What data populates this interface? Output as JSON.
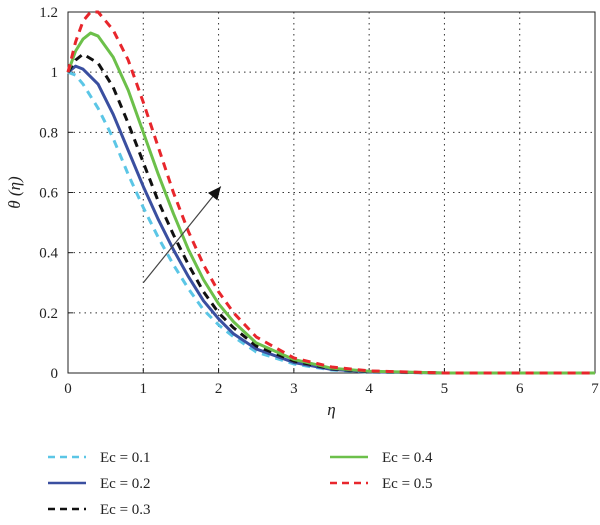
{
  "chart_data": {
    "type": "line",
    "title": "",
    "xlabel": "η",
    "ylabel": "θ (η)",
    "xlim": [
      0,
      7
    ],
    "ylim": [
      0,
      1.2
    ],
    "xticks": [
      "0",
      "1",
      "2",
      "3",
      "4",
      "5",
      "6",
      "7"
    ],
    "yticks": [
      "0",
      "0.2",
      "0.4",
      "0.6",
      "0.8",
      "1",
      "1.2"
    ],
    "grid": true,
    "legend_position": "bottom",
    "annotation": "arrow indicating increasing Ec",
    "series": [
      {
        "name": "Ec = 0.1",
        "color": "#5bc6e6",
        "dash": "dashed",
        "x": [
          0,
          0.1,
          0.2,
          0.4,
          0.6,
          0.8,
          1.0,
          1.2,
          1.4,
          1.6,
          1.8,
          2.0,
          2.2,
          2.5,
          3.0,
          3.5,
          4.0,
          5.0,
          6.0,
          7.0
        ],
        "y": [
          1.0,
          0.99,
          0.96,
          0.88,
          0.78,
          0.66,
          0.55,
          0.45,
          0.36,
          0.28,
          0.21,
          0.16,
          0.12,
          0.07,
          0.03,
          0.01,
          0.003,
          0.0,
          0.0,
          0.0
        ]
      },
      {
        "name": "Ec = 0.2",
        "color": "#3a4fa0",
        "dash": "solid",
        "x": [
          0,
          0.1,
          0.2,
          0.4,
          0.6,
          0.8,
          1.0,
          1.2,
          1.4,
          1.6,
          1.8,
          2.0,
          2.2,
          2.5,
          3.0,
          3.5,
          4.0,
          5.0,
          6.0,
          7.0
        ],
        "y": [
          1.0,
          1.02,
          1.01,
          0.96,
          0.86,
          0.74,
          0.62,
          0.51,
          0.41,
          0.32,
          0.24,
          0.18,
          0.13,
          0.08,
          0.035,
          0.012,
          0.004,
          0.0,
          0.0,
          0.0
        ]
      },
      {
        "name": "Ec = 0.3",
        "color": "#111111",
        "dash": "dashed",
        "x": [
          0,
          0.1,
          0.2,
          0.4,
          0.6,
          0.8,
          1.0,
          1.2,
          1.4,
          1.6,
          1.8,
          2.0,
          2.2,
          2.5,
          3.0,
          3.5,
          4.0,
          5.0,
          6.0,
          7.0
        ],
        "y": [
          1.0,
          1.04,
          1.06,
          1.03,
          0.95,
          0.83,
          0.7,
          0.57,
          0.46,
          0.36,
          0.27,
          0.2,
          0.15,
          0.09,
          0.04,
          0.014,
          0.005,
          0.0,
          0.0,
          0.0
        ]
      },
      {
        "name": "Ec = 0.4",
        "color": "#6cc04a",
        "dash": "solid",
        "x": [
          0,
          0.1,
          0.2,
          0.3,
          0.4,
          0.6,
          0.8,
          1.0,
          1.2,
          1.4,
          1.6,
          1.8,
          2.0,
          2.2,
          2.5,
          3.0,
          3.5,
          4.0,
          5.0,
          6.0,
          7.0
        ],
        "y": [
          1.0,
          1.07,
          1.11,
          1.13,
          1.12,
          1.05,
          0.94,
          0.8,
          0.66,
          0.53,
          0.41,
          0.31,
          0.23,
          0.17,
          0.1,
          0.045,
          0.016,
          0.006,
          0.0,
          0.0,
          0.0
        ]
      },
      {
        "name": "Ec = 0.5",
        "color": "#e8262c",
        "dash": "dashed",
        "x": [
          0,
          0.1,
          0.2,
          0.3,
          0.4,
          0.6,
          0.8,
          1.0,
          1.2,
          1.4,
          1.6,
          1.8,
          2.0,
          2.2,
          2.5,
          3.0,
          3.5,
          4.0,
          5.0,
          6.0,
          7.0
        ],
        "y": [
          1.0,
          1.1,
          1.17,
          1.2,
          1.2,
          1.14,
          1.04,
          0.9,
          0.75,
          0.6,
          0.47,
          0.36,
          0.27,
          0.2,
          0.12,
          0.05,
          0.02,
          0.007,
          0.0,
          0.0,
          0.0
        ]
      }
    ]
  }
}
